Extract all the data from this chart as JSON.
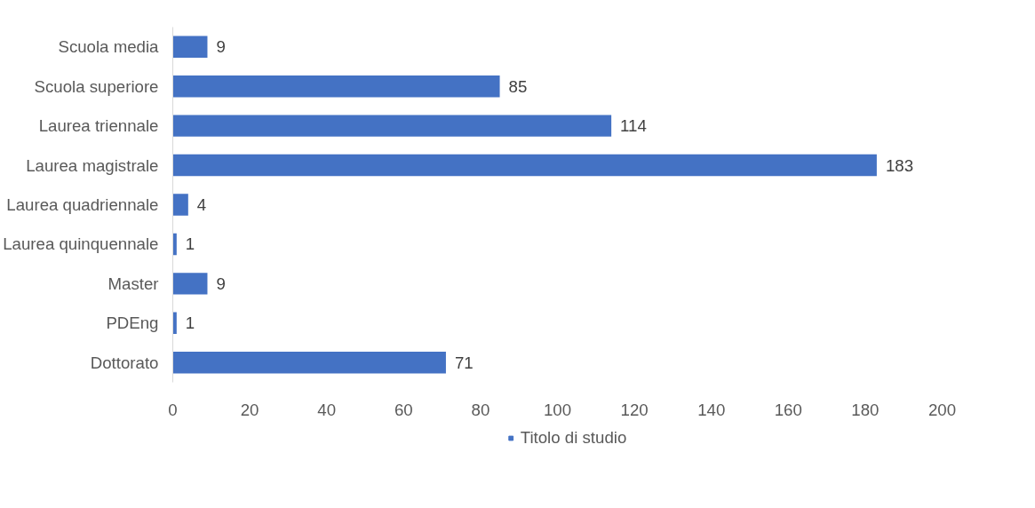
{
  "chart_data": {
    "type": "bar",
    "orientation": "horizontal",
    "categories": [
      "Scuola media",
      "Scuola superiore",
      "Laurea triennale",
      "Laurea magistrale",
      "Laurea quadriennale",
      "Laurea quinquennale",
      "Master",
      "PDEng",
      "Dottorato"
    ],
    "series": [
      {
        "name": "Titolo di studio",
        "color": "#4472c4",
        "values": [
          9,
          85,
          114,
          183,
          4,
          1,
          9,
          1,
          71
        ]
      }
    ],
    "xlim": [
      0,
      200
    ],
    "xticks": [
      0,
      20,
      40,
      60,
      80,
      100,
      120,
      140,
      160,
      180,
      200
    ],
    "grid": false,
    "legend": "bottom",
    "data_labels": true
  }
}
